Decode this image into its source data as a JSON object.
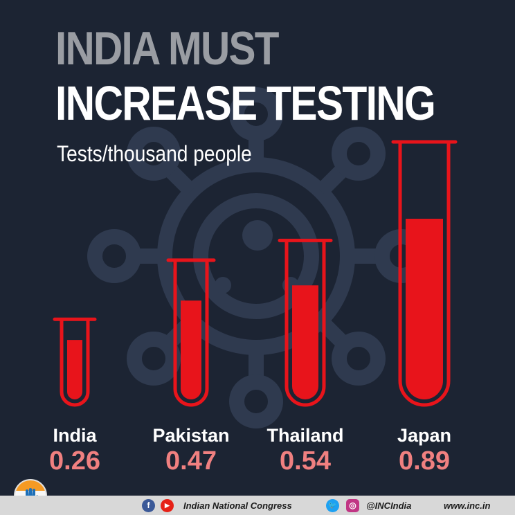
{
  "title_line1": "INDIA MUST",
  "title_line2": "INCREASE TESTING",
  "subtitle": "Tests/thousand people",
  "chart_data": {
    "type": "bar",
    "categories": [
      "India",
      "Pakistan",
      "Thailand",
      "Japan"
    ],
    "values": [
      0.26,
      0.47,
      0.54,
      0.89
    ],
    "value_labels": [
      "0.26",
      "0.47",
      "0.54",
      "0.89"
    ],
    "ylabel": "Tests/thousand people",
    "grid": false,
    "colors": {
      "bar": "#e8141b",
      "label_value": "#f08080",
      "label_category": "#ffffff"
    }
  },
  "footer": {
    "facebook_icon": "f",
    "youtube_icon": "▶",
    "twitter_icon": "🐦",
    "instagram_icon": "◎",
    "party": "Indian National Congress",
    "handle": "@INCIndia",
    "website": "www.inc.in"
  },
  "colors": {
    "background": "#1c2433",
    "footer_bg": "#d8d8d8"
  }
}
